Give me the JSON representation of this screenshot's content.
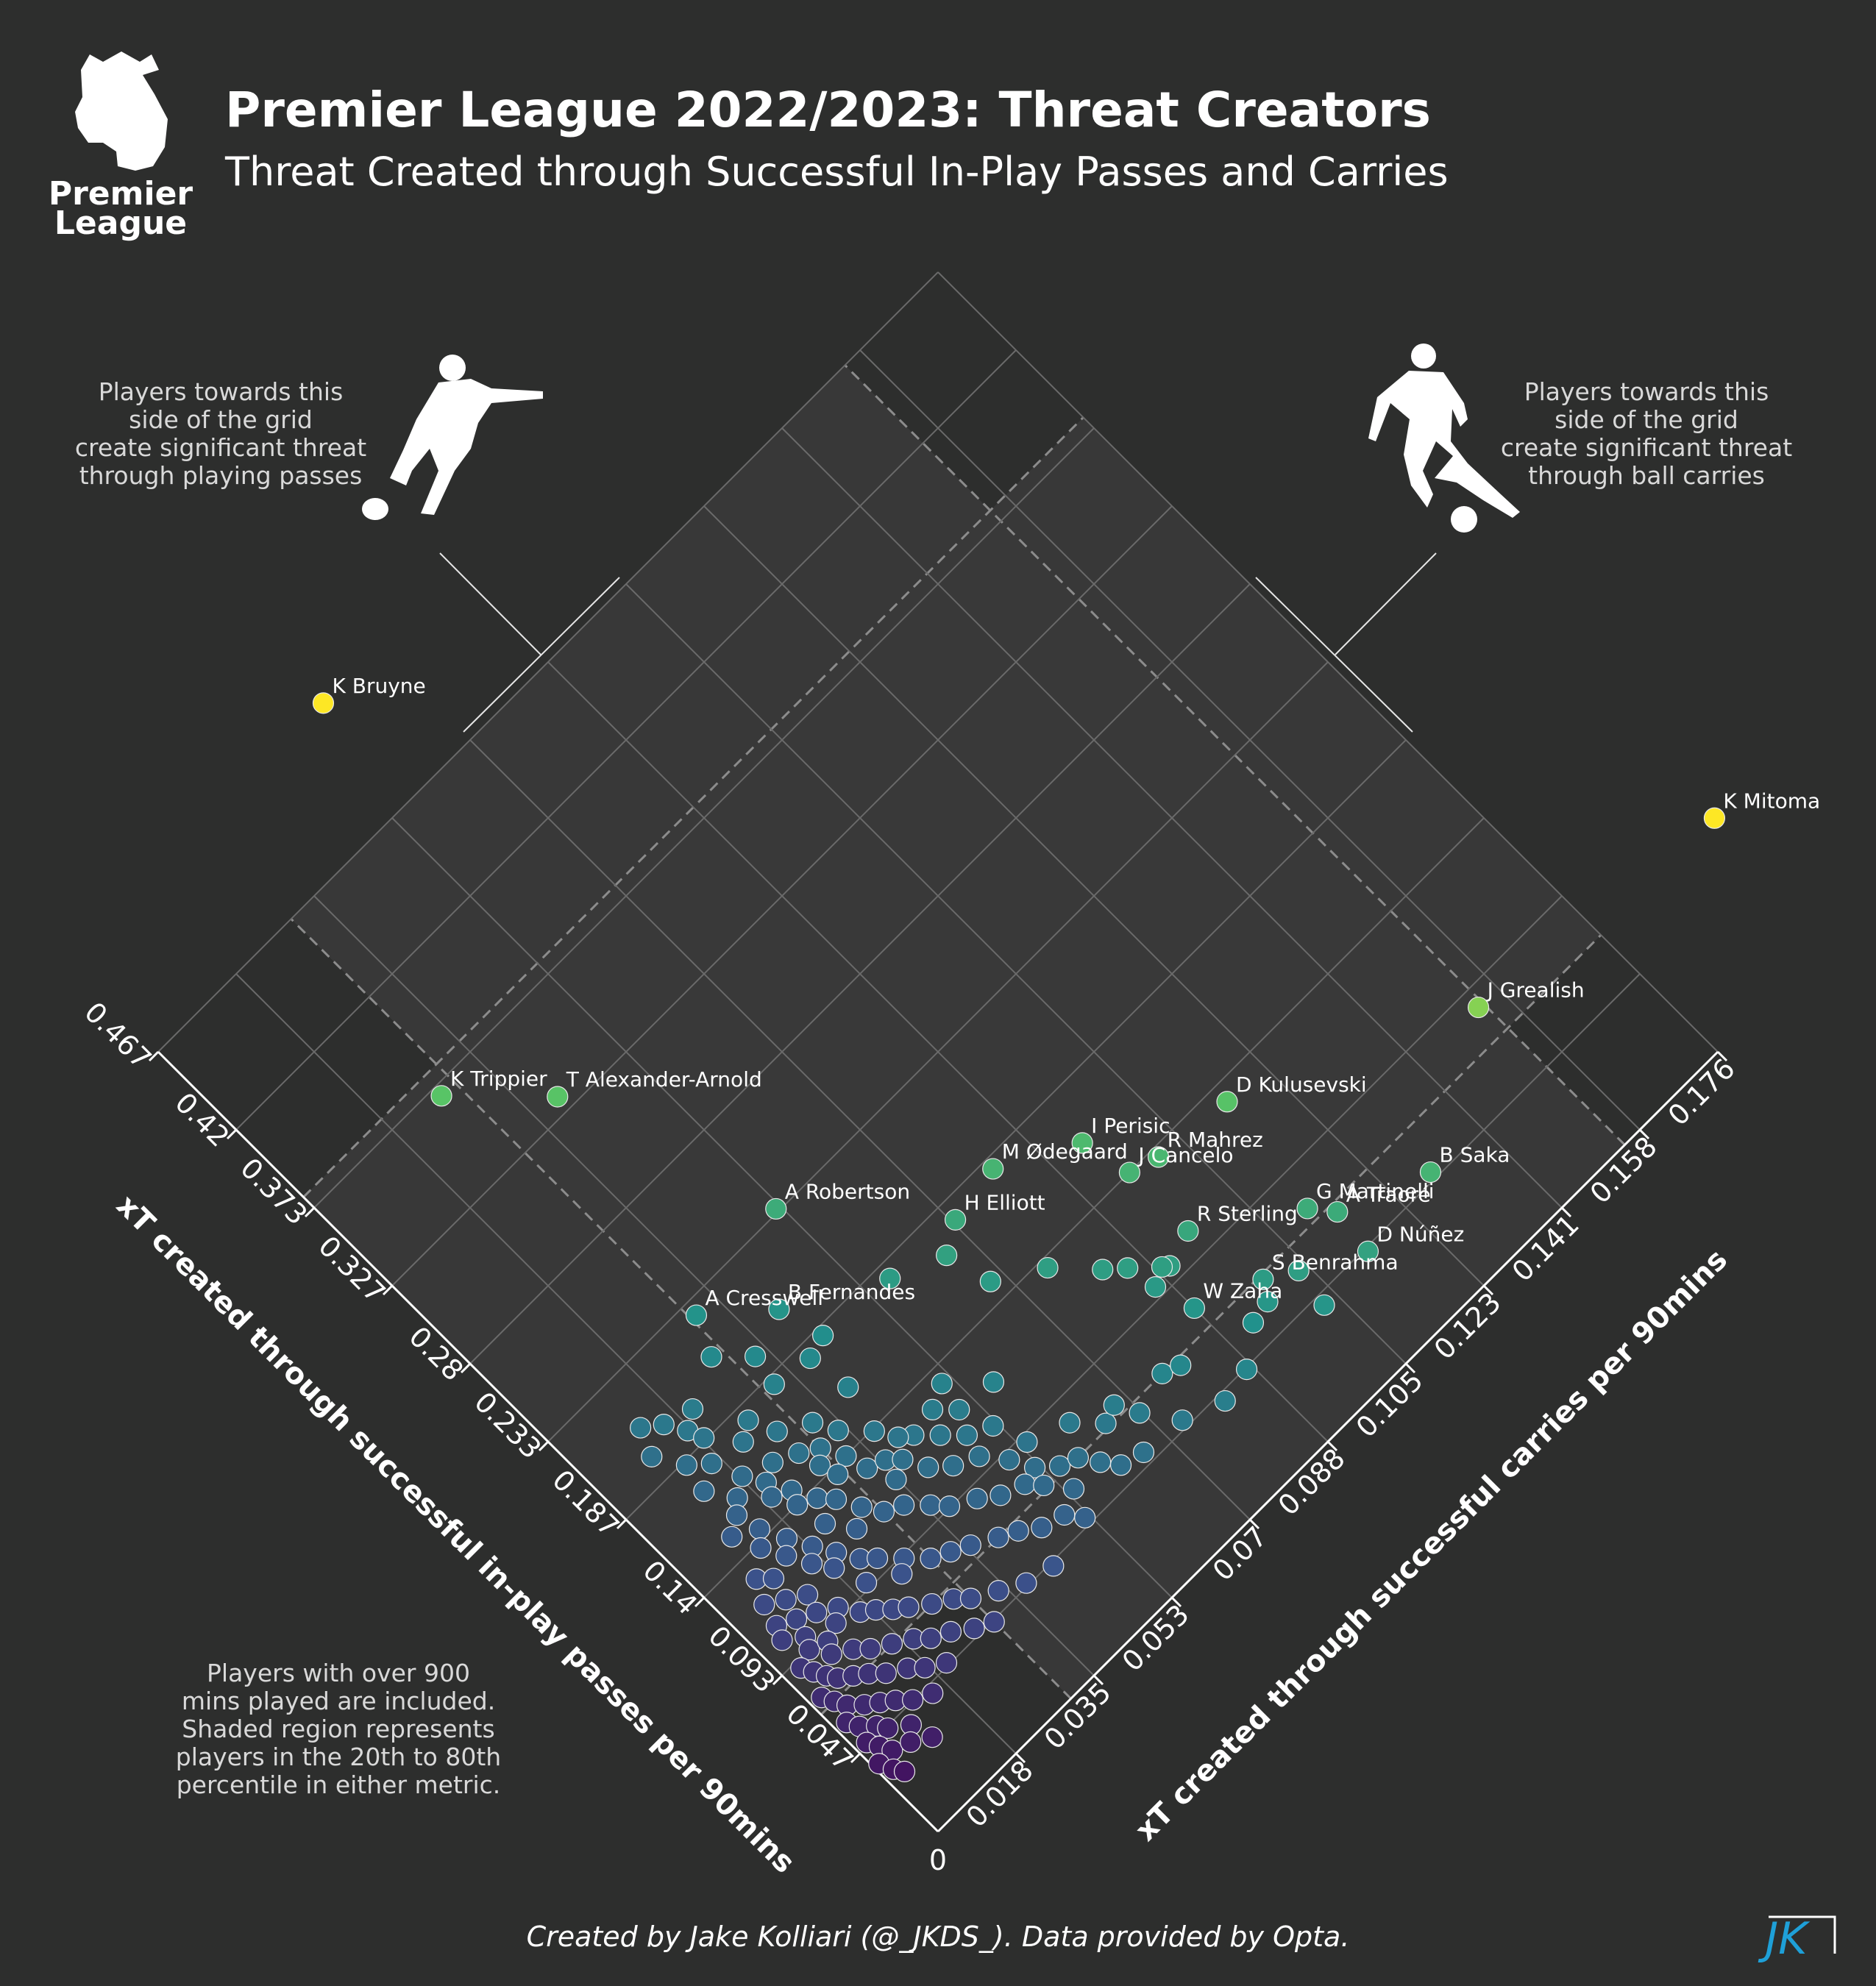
{
  "header": {
    "title": "Premier League 2022/2023: Threat Creators",
    "subtitle": "Threat Created through Successful In-Play Passes and Carries",
    "logo_line1": "Premier",
    "logo_line2": "League"
  },
  "notes": {
    "left_lines": [
      "Players towards this",
      "side of the grid",
      "create significant threat",
      "through playing passes"
    ],
    "right_lines": [
      "Players towards this",
      "side of the grid",
      "create significant threat",
      "through ball carries"
    ],
    "bottom_lines": [
      "Players with over 900",
      "mins played are included.",
      "Shaded region represents",
      "players in the 20th to 80th",
      "percentile in either metric."
    ]
  },
  "footer": {
    "credit": "Created by Jake Kolliari (@_JKDS_). Data provided by Opta.",
    "badge": "JK"
  },
  "colors": {
    "background": "#2d2e2d",
    "grid": "#6a6a6a",
    "shade": "#3a3a3a",
    "text": "#ffffff",
    "note_text": "#d9d9d9",
    "badge": "#1ea0d8",
    "colormap": [
      "#440154",
      "#3b528b",
      "#21918c",
      "#5ec962",
      "#fde725"
    ]
  },
  "chart_data": {
    "type": "scatter",
    "layout": "rotated 45 degree diamond grid",
    "x_label": "xT created through successful in-play passes per 90mins",
    "y_label": "xT created through successful carries per 90mins",
    "x_ticks": [
      "0.047",
      "0.093",
      "0.14",
      "0.187",
      "0.233",
      "0.28",
      "0.327",
      "0.373",
      "0.42",
      "0.467"
    ],
    "y_ticks": [
      "0.018",
      "0.035",
      "0.053",
      "0.07",
      "0.088",
      "0.105",
      "0.123",
      "0.141",
      "0.158",
      "0.176"
    ],
    "origin_label": "0",
    "x_range": [
      0,
      0.467
    ],
    "y_range": [
      0,
      0.176
    ],
    "x_shade": [
      0.07,
      0.38
    ],
    "y_shade": [
      0.03,
      0.155
    ],
    "color_by": "sum of both metrics",
    "labeled_players": [
      {
        "name": "K Bruyne",
        "x": 0.522,
        "y": 0.058
      },
      {
        "name": "K Mitoma",
        "x": 0.071,
        "y": 0.202
      },
      {
        "name": "J Grealish",
        "x": 0.085,
        "y": 0.154
      },
      {
        "name": "D Kulusevski",
        "x": 0.132,
        "y": 0.115
      },
      {
        "name": "B Saka",
        "x": 0.05,
        "y": 0.13
      },
      {
        "name": "J Cancelo",
        "x": 0.14,
        "y": 0.096
      },
      {
        "name": "R Mahrez",
        "x": 0.136,
        "y": 0.101
      },
      {
        "name": "I Perisic",
        "x": 0.163,
        "y": 0.094
      },
      {
        "name": "T Alexander-Arnold",
        "x": 0.334,
        "y": 0.04
      },
      {
        "name": "K Trippier",
        "x": 0.369,
        "y": 0.027
      },
      {
        "name": "M Ødegaard",
        "x": 0.182,
        "y": 0.081
      },
      {
        "name": "G Martinelli",
        "x": 0.076,
        "y": 0.112
      },
      {
        "name": "R Sterling",
        "x": 0.105,
        "y": 0.096
      },
      {
        "name": "A Traoré",
        "x": 0.066,
        "y": 0.115
      },
      {
        "name": "A Robertson",
        "x": 0.235,
        "y": 0.052
      },
      {
        "name": "H Elliott",
        "x": 0.178,
        "y": 0.071
      },
      {
        "name": "S Benrahma",
        "x": 0.068,
        "y": 0.099
      },
      {
        "name": "W Zaha",
        "x": 0.08,
        "y": 0.088
      },
      {
        "name": "D Núñez",
        "x": 0.045,
        "y": 0.114
      },
      {
        "name": "B Fernandes",
        "x": 0.204,
        "y": 0.041
      },
      {
        "name": "A Cresswell",
        "x": 0.227,
        "y": 0.031
      }
    ],
    "other_players": [
      [
        0.17,
        0.066
      ],
      [
        0.149,
        0.068
      ],
      [
        0.18,
        0.057
      ],
      [
        0.136,
        0.076
      ],
      [
        0.119,
        0.082
      ],
      [
        0.112,
        0.085
      ],
      [
        0.1,
        0.09
      ],
      [
        0.102,
        0.089
      ],
      [
        0.098,
        0.086
      ],
      [
        0.06,
        0.104
      ],
      [
        0.06,
        0.097
      ],
      [
        0.058,
        0.093
      ],
      [
        0.042,
        0.103
      ],
      [
        0.183,
        0.043
      ],
      [
        0.18,
        0.039
      ],
      [
        0.16,
        0.04
      ],
      [
        0.21,
        0.028
      ],
      [
        0.197,
        0.033
      ],
      [
        0.183,
        0.032
      ],
      [
        0.133,
        0.051
      ],
      [
        0.118,
        0.057
      ],
      [
        0.07,
        0.077
      ],
      [
        0.067,
        0.08
      ],
      [
        0.046,
        0.087
      ],
      [
        0.16,
        0.032
      ],
      [
        0.15,
        0.034
      ],
      [
        0.139,
        0.038
      ],
      [
        0.126,
        0.042
      ],
      [
        0.128,
        0.047
      ],
      [
        0.13,
        0.04
      ],
      [
        0.12,
        0.05
      ],
      [
        0.118,
        0.045
      ],
      [
        0.11,
        0.048
      ],
      [
        0.105,
        0.052
      ],
      [
        0.09,
        0.054
      ],
      [
        0.083,
        0.061
      ],
      [
        0.072,
        0.065
      ],
      [
        0.075,
        0.068
      ],
      [
        0.065,
        0.07
      ],
      [
        0.05,
        0.074
      ],
      [
        0.043,
        0.081
      ],
      [
        0.2,
        0.02
      ],
      [
        0.195,
        0.017
      ],
      [
        0.188,
        0.018
      ],
      [
        0.18,
        0.025
      ],
      [
        0.175,
        0.022
      ],
      [
        0.168,
        0.027
      ],
      [
        0.16,
        0.023
      ],
      [
        0.155,
        0.027
      ],
      [
        0.15,
        0.03
      ],
      [
        0.145,
        0.028
      ],
      [
        0.14,
        0.032
      ],
      [
        0.137,
        0.029
      ],
      [
        0.13,
        0.033
      ],
      [
        0.127,
        0.036
      ],
      [
        0.122,
        0.038
      ],
      [
        0.118,
        0.035
      ],
      [
        0.112,
        0.04
      ],
      [
        0.105,
        0.043
      ],
      [
        0.1,
        0.047
      ],
      [
        0.09,
        0.05
      ],
      [
        0.08,
        0.052
      ],
      [
        0.073,
        0.055
      ],
      [
        0.07,
        0.058
      ],
      [
        0.062,
        0.06
      ],
      [
        0.055,
        0.062
      ],
      [
        0.052,
        0.066
      ],
      [
        0.21,
        0.012
      ],
      [
        0.204,
        0.015
      ],
      [
        0.198,
        0.01
      ],
      [
        0.185,
        0.013
      ],
      [
        0.178,
        0.016
      ],
      [
        0.172,
        0.012
      ],
      [
        0.165,
        0.018
      ],
      [
        0.16,
        0.015
      ],
      [
        0.156,
        0.02
      ],
      [
        0.15,
        0.019
      ],
      [
        0.146,
        0.022
      ],
      [
        0.14,
        0.021
      ],
      [
        0.136,
        0.024
      ],
      [
        0.13,
        0.026
      ],
      [
        0.126,
        0.022
      ],
      [
        0.12,
        0.028
      ],
      [
        0.115,
        0.025
      ],
      [
        0.112,
        0.03
      ],
      [
        0.108,
        0.033
      ],
      [
        0.1,
        0.036
      ],
      [
        0.094,
        0.038
      ],
      [
        0.088,
        0.042
      ],
      [
        0.082,
        0.045
      ],
      [
        0.078,
        0.049
      ],
      [
        0.072,
        0.051
      ],
      [
        0.062,
        0.054
      ],
      [
        0.155,
        0.013
      ],
      [
        0.15,
        0.01
      ],
      [
        0.144,
        0.014
      ],
      [
        0.138,
        0.012
      ],
      [
        0.133,
        0.016
      ],
      [
        0.128,
        0.014
      ],
      [
        0.123,
        0.018
      ],
      [
        0.118,
        0.016
      ],
      [
        0.114,
        0.02
      ],
      [
        0.11,
        0.018
      ],
      [
        0.105,
        0.022
      ],
      [
        0.1,
        0.024
      ],
      [
        0.096,
        0.02
      ],
      [
        0.092,
        0.027
      ],
      [
        0.088,
        0.025
      ],
      [
        0.084,
        0.03
      ],
      [
        0.08,
        0.033
      ],
      [
        0.076,
        0.036
      ],
      [
        0.07,
        0.04
      ],
      [
        0.066,
        0.043
      ],
      [
        0.06,
        0.046
      ],
      [
        0.057,
        0.05
      ],
      [
        0.05,
        0.052
      ],
      [
        0.13,
        0.008
      ],
      [
        0.125,
        0.01
      ],
      [
        0.12,
        0.006
      ],
      [
        0.115,
        0.009
      ],
      [
        0.11,
        0.012
      ],
      [
        0.106,
        0.008
      ],
      [
        0.102,
        0.011
      ],
      [
        0.097,
        0.014
      ],
      [
        0.093,
        0.012
      ],
      [
        0.089,
        0.016
      ],
      [
        0.085,
        0.018
      ],
      [
        0.08,
        0.02
      ],
      [
        0.076,
        0.022
      ],
      [
        0.07,
        0.025
      ],
      [
        0.065,
        0.028
      ],
      [
        0.06,
        0.03
      ],
      [
        0.054,
        0.034
      ],
      [
        0.048,
        0.038
      ],
      [
        0.045,
        0.043
      ],
      [
        0.11,
        0.005
      ],
      [
        0.104,
        0.004
      ],
      [
        0.098,
        0.007
      ],
      [
        0.093,
        0.006
      ],
      [
        0.09,
        0.009
      ],
      [
        0.085,
        0.008
      ],
      [
        0.08,
        0.011
      ],
      [
        0.075,
        0.013
      ],
      [
        0.07,
        0.016
      ],
      [
        0.065,
        0.019
      ],
      [
        0.06,
        0.021
      ],
      [
        0.056,
        0.024
      ],
      [
        0.05,
        0.027
      ],
      [
        0.046,
        0.03
      ],
      [
        0.09,
        0.003
      ],
      [
        0.085,
        0.004
      ],
      [
        0.08,
        0.005
      ],
      [
        0.076,
        0.006
      ],
      [
        0.072,
        0.008
      ],
      [
        0.068,
        0.01
      ],
      [
        0.063,
        0.012
      ],
      [
        0.058,
        0.015
      ],
      [
        0.053,
        0.017
      ],
      [
        0.048,
        0.02
      ],
      [
        0.075,
        0.002
      ],
      [
        0.07,
        0.003
      ],
      [
        0.065,
        0.004
      ],
      [
        0.06,
        0.006
      ],
      [
        0.056,
        0.008
      ],
      [
        0.052,
        0.01
      ],
      [
        0.047,
        0.012
      ],
      [
        0.043,
        0.015
      ],
      [
        0.06,
        0.002
      ],
      [
        0.055,
        0.003
      ],
      [
        0.05,
        0.005
      ],
      [
        0.046,
        0.006
      ],
      [
        0.04,
        0.009
      ],
      [
        0.048,
        0.002
      ],
      [
        0.043,
        0.003
      ],
      [
        0.038,
        0.004
      ],
      [
        0.035,
        0.007
      ],
      [
        0.03,
        0.01
      ],
      [
        0.038,
        0.001
      ],
      [
        0.032,
        0.002
      ],
      [
        0.028,
        0.003
      ]
    ]
  }
}
